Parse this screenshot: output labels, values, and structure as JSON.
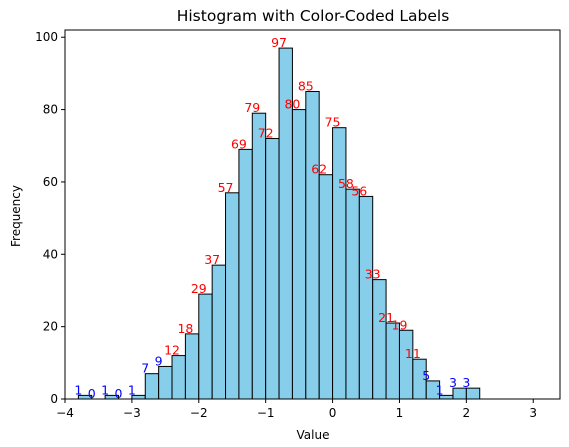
{
  "chart_data": {
    "type": "bar",
    "title": "Histogram with Color-Coded Labels",
    "xlabel": "Value",
    "ylabel": "Frequency",
    "xlim": [
      -4.0,
      3.4
    ],
    "ylim": [
      0,
      102
    ],
    "x_ticks": [
      -4,
      -3,
      -2,
      -1,
      0,
      1,
      2,
      3
    ],
    "x_tick_labels": [
      "−4",
      "−3",
      "−2",
      "−1",
      "0",
      "1",
      "2",
      "3"
    ],
    "y_ticks": [
      0,
      20,
      40,
      60,
      80,
      100
    ],
    "y_tick_labels": [
      "0",
      "20",
      "40",
      "60",
      "80",
      "100"
    ],
    "bin_start": -3.8,
    "bin_width": 0.2,
    "values": [
      1,
      0,
      1,
      0,
      1,
      7,
      9,
      12,
      18,
      29,
      37,
      57,
      69,
      79,
      72,
      97,
      80,
      85,
      62,
      75,
      58,
      56,
      33,
      21,
      19,
      11,
      5,
      1,
      3,
      3
    ],
    "value_labels": [
      "1",
      "0",
      "1",
      "0",
      "1",
      "7",
      "9",
      "12",
      "18",
      "29",
      "37",
      "57",
      "69",
      "79",
      "72",
      "97",
      "80",
      "85",
      "62",
      "75",
      "58",
      "56",
      "33",
      "21",
      "19",
      "11",
      "5",
      "1",
      "3",
      "3"
    ],
    "label_threshold": 10,
    "bar_color": "#87CEEB",
    "bar_edge_color": "#000000",
    "label_color_high": "#FF0000",
    "label_color_low": "#0000FF",
    "grid": false
  }
}
